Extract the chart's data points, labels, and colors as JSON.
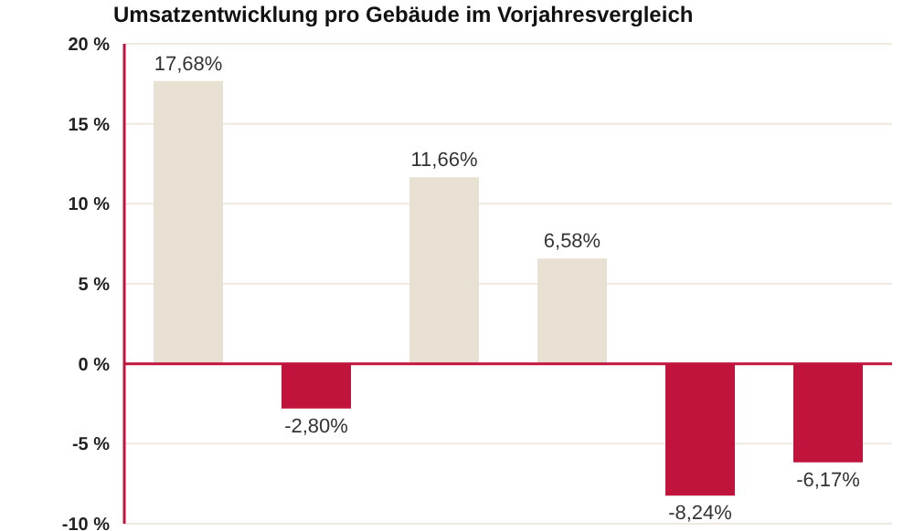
{
  "chart_data": {
    "type": "bar",
    "title": "Umsatzentwicklung pro Gebäude im Vorjahresvergleich",
    "categories": [
      null,
      null,
      null,
      null,
      null,
      null
    ],
    "values": [
      17.68,
      -2.8,
      11.66,
      6.58,
      -8.24,
      -6.17
    ],
    "colors": [
      "#e8e0d2",
      "#c0143c",
      "#e8e0d2",
      "#e8e0d2",
      "#c0143c",
      "#c0143c"
    ],
    "value_labels": [
      "17,68%",
      "-2,80%",
      "11,66%",
      "6,58%",
      "-8,24%",
      "-6,17%"
    ],
    "ylim": [
      -10,
      20
    ],
    "yticks": [
      {
        "value": -10,
        "label": "-10 %"
      },
      {
        "value": -5,
        "label": "-5 %"
      },
      {
        "value": 0,
        "label": "0 %"
      },
      {
        "value": 5,
        "label": "5 %"
      },
      {
        "value": 10,
        "label": "10 %"
      },
      {
        "value": 15,
        "label": "15 %"
      },
      {
        "value": 20,
        "label": "20 %"
      }
    ],
    "ref_lines": [
      {
        "axis": "y",
        "value": 0,
        "color": "#c0143c"
      }
    ],
    "grid": "y",
    "tick_labels": "y"
  }
}
